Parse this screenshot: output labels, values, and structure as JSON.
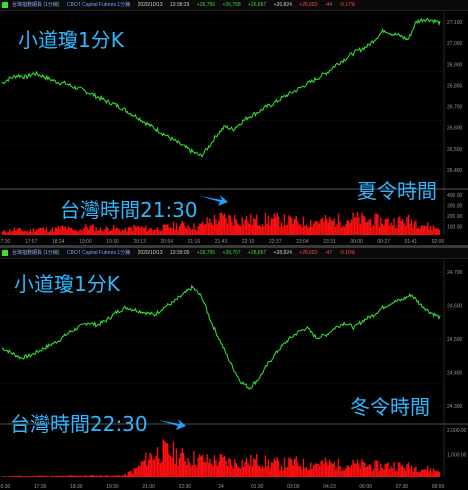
{
  "colors": {
    "price": "#35e635",
    "volume": "#ff1010",
    "label": "#34b8ff",
    "grid": "#222222",
    "axis": "#9a9a9a",
    "arrow": "#1aa3ff"
  },
  "charts": [
    {
      "header": {
        "title": "台灣指數期貨 (1分線)",
        "code": "CBOT Capital Futures 1分鐘",
        "date": "2020/10/13",
        "time": "13:38:29",
        "open": "+26,756",
        "high": "+26,758",
        "close": "+26,867",
        "low": "+26,824",
        "last": "+26,650",
        "chg": "-44",
        "pct": "-0.17%"
      },
      "overlay": {
        "title": "小道瓊1分K",
        "season": "夏令時間",
        "note": "台灣時間21:30"
      },
      "price_ticks": [
        "27,100",
        "27,000",
        "26,900",
        "26,800",
        "26,700",
        "26,600",
        "26,500",
        "26,400"
      ],
      "volume_ticks": [
        "400.00",
        "300.00",
        "200.00",
        "100.00"
      ],
      "time_ticks": [
        "17:30",
        "17:57",
        "18:24",
        "19:00",
        "19:30",
        "20:13",
        "20:54",
        "21:16",
        "21:43",
        "22:10",
        "22:37",
        "23:04",
        "23:31",
        "00:00",
        "00:27",
        "01:41",
        "02:00"
      ]
    },
    {
      "header": {
        "title": "台灣指數期貨 (1分線)",
        "code": "CBOT Capital Futures 1分鐘",
        "date": "2020/10/13",
        "time": "13:39:05",
        "open": "+28,765",
        "high": "+28,767",
        "close": "+28,867",
        "low": "+28,824",
        "last": "+28,650",
        "chg": "-47",
        "pct": "-0.16%"
      },
      "overlay": {
        "title": "小道瓊1分K",
        "season": "冬令時間",
        "note": "台灣時間22:30"
      },
      "price_ticks": [
        "24,700",
        "24,600",
        "24,500",
        "24,400",
        "24,300"
      ],
      "volume_ticks": [
        "2,000.00",
        "1,000.00"
      ],
      "time_ticks": [
        "16:30",
        "17:30",
        "18:30",
        "19:30",
        "21:00",
        "22:30",
        "24",
        "01:30",
        "03:00",
        "04:23",
        "06:00",
        "07:30",
        "09:00"
      ]
    }
  ],
  "chart_data": [
    {
      "type": "line",
      "title": "小道瓊1分K",
      "series": [
        {
          "values": [
            26840,
            26865,
            26880,
            26870,
            26890,
            26878,
            26860,
            26845,
            26838,
            26820,
            26808,
            26790,
            26770,
            26750,
            26735,
            26715,
            26690,
            26668,
            26640,
            26615,
            26590,
            26565,
            26540,
            26515,
            26490,
            26470,
            26520,
            26580,
            26620,
            26605,
            26640,
            26670,
            26690,
            26715,
            26735,
            26760,
            26785,
            26805,
            26830,
            26850,
            26875,
            26900,
            26935,
            26960,
            26990,
            27010,
            27030,
            27070,
            27110,
            27090,
            27080,
            27060,
            27150,
            27165,
            27160,
            27145
          ]
        }
      ],
      "ylim": [
        26400,
        27150
      ]
    },
    {
      "type": "bar",
      "series": [
        {
          "values": [
            35,
            60,
            40,
            70,
            55,
            80,
            45,
            90,
            60,
            75,
            50,
            85,
            65,
            70,
            95,
            110,
            80,
            150,
            175,
            170,
            160,
            150,
            165,
            155,
            140,
            135,
            150,
            145,
            160,
            170,
            155,
            150,
            140,
            150,
            145,
            90,
            70
          ]
        }
      ],
      "ylim": [
        0,
        400
      ]
    },
    {
      "type": "line",
      "title": "小道瓊1分K",
      "series": [
        {
          "values": [
            24480,
            24460,
            24440,
            24450,
            24470,
            24490,
            24510,
            24540,
            24560,
            24580,
            24570,
            24590,
            24620,
            24640,
            24630,
            24620,
            24610,
            24640,
            24660,
            24690,
            24720,
            24680,
            24580,
            24500,
            24420,
            24350,
            24320,
            24360,
            24420,
            24470,
            24510,
            24540,
            24560,
            24520,
            24530,
            24560,
            24580,
            24560,
            24590,
            24610,
            24640,
            24660,
            24670,
            24690,
            24650,
            24620,
            24600
          ]
        }
      ],
      "ylim": [
        24250,
        24780
      ]
    },
    {
      "type": "bar",
      "series": [
        {
          "values": [
            30,
            50,
            40,
            60,
            45,
            55,
            70,
            65,
            80,
            60,
            90,
            400,
            1000,
            1300,
            1200,
            950,
            900,
            800,
            850,
            700,
            750,
            820,
            680,
            640,
            720,
            600,
            700,
            650,
            600,
            620,
            580,
            540,
            600,
            520,
            480,
            380,
            300
          ]
        }
      ],
      "ylim": [
        0,
        2200
      ]
    }
  ]
}
